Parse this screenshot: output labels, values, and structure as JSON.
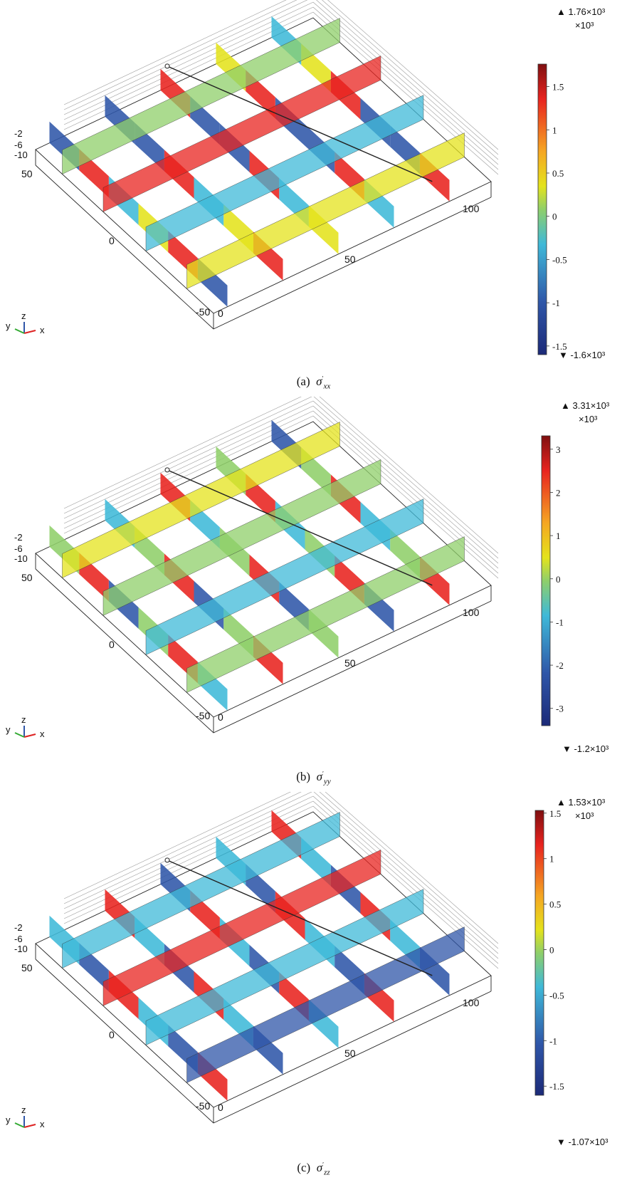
{
  "panels": [
    {
      "caption_label": "(a)",
      "caption_symbol": "σ",
      "caption_sub": "xx",
      "colorbar": {
        "max_label": "▲ 1.76×10³",
        "exponent_label": "×10³",
        "min_label": "▼ -1.6×10³",
        "ticks": [
          "1.5",
          "1",
          "0.5",
          "0",
          "-0.5",
          "-1",
          "-1.5"
        ]
      },
      "axes": {
        "z_ticks": [
          "-2",
          "-6",
          "-10"
        ],
        "y_ticks": [
          "50",
          "0",
          "-50"
        ],
        "x_ticks": [
          "0",
          "50",
          "100"
        ]
      }
    },
    {
      "caption_label": "(b)",
      "caption_symbol": "σ",
      "caption_sub": "yy",
      "colorbar": {
        "max_label": "▲ 3.31×10³",
        "exponent_label": "×10³",
        "min_label": "▼ -1.2×10³",
        "ticks": [
          "3",
          "2",
          "1",
          "0",
          "-1",
          "-2",
          "-3"
        ]
      },
      "axes": {
        "z_ticks": [
          "-2",
          "-6",
          "-10"
        ],
        "y_ticks": [
          "50",
          "0",
          "-50"
        ],
        "x_ticks": [
          "0",
          "50",
          "100"
        ]
      }
    },
    {
      "caption_label": "(c)",
      "caption_symbol": "σ",
      "caption_sub": "zz",
      "colorbar": {
        "max_label": "▲ 1.53×10³",
        "exponent_label": "×10³",
        "min_label": "▼ -1.07×10³",
        "ticks": [
          "1.5",
          "1",
          "0.5",
          "0",
          "-0.5",
          "-1",
          "-1.5"
        ]
      },
      "axes": {
        "z_ticks": [
          "-2",
          "-6",
          "-10"
        ],
        "y_ticks": [
          "50",
          "0",
          "-50"
        ],
        "x_ticks": [
          "0",
          "50",
          "100"
        ]
      }
    }
  ],
  "triad": {
    "x": "x",
    "y": "y",
    "z": "z"
  },
  "colors": {
    "max": "#7f0f10",
    "high": "#e8231f",
    "mid_high": "#f5a623",
    "mid": "#e4e31c",
    "zero": "#8fcf6a",
    "mid_low": "#3fb9d8",
    "low": "#2f56a8",
    "min": "#1c2a78"
  }
}
